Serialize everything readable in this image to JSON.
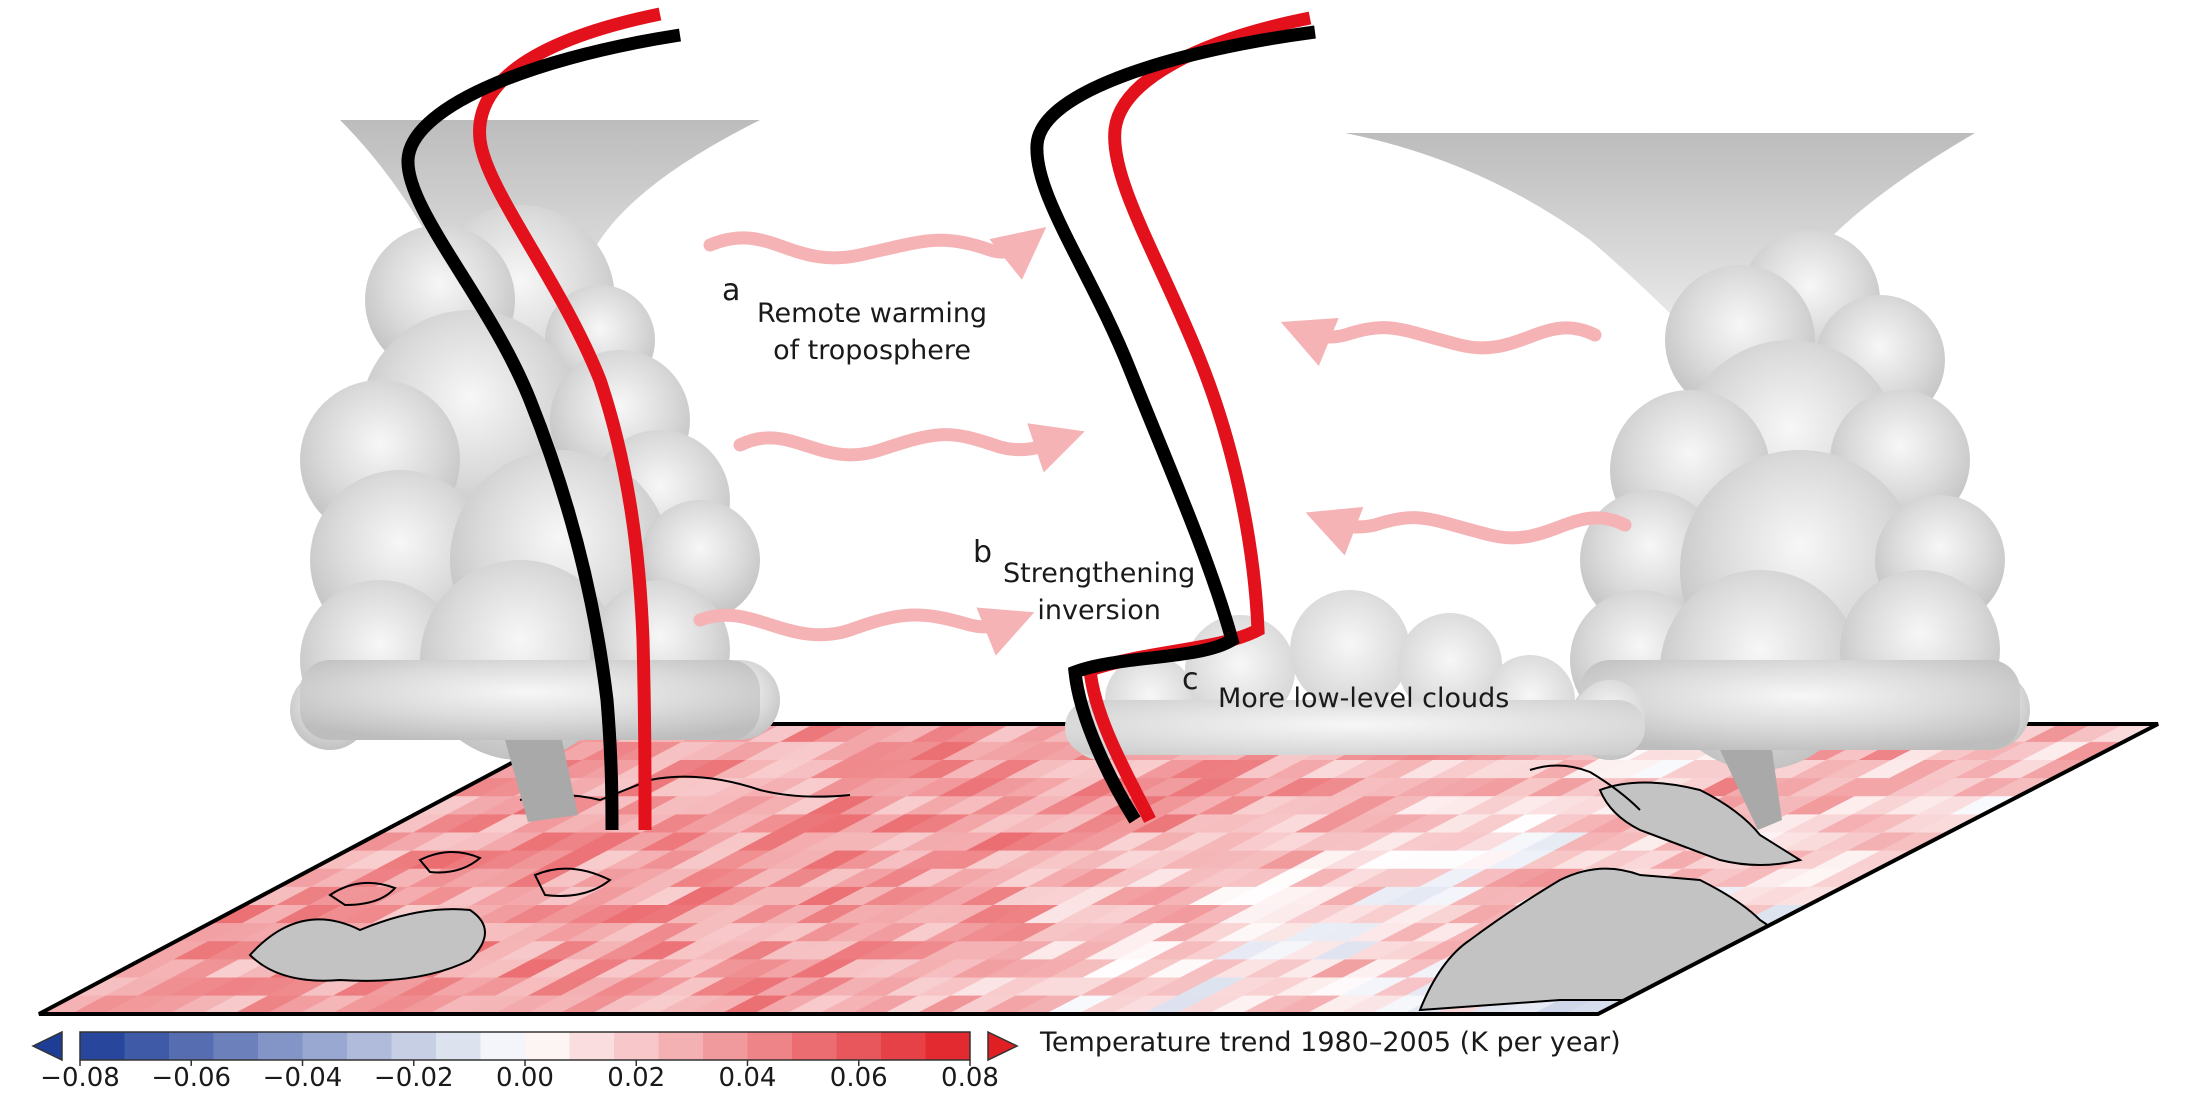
{
  "labels": {
    "a": {
      "letter": "a",
      "line1": "Remote warming",
      "line2": "of troposphere"
    },
    "b": {
      "letter": "b",
      "line1": "Strengthening",
      "line2": "inversion"
    },
    "c": {
      "letter": "c",
      "line1": "More low-level clouds"
    }
  },
  "colorbar": {
    "title": "Temperature trend 1980–2005 (K per year)",
    "ticks": [
      "−0.08",
      "−0.06",
      "−0.04",
      "−0.02",
      "0.00",
      "0.02",
      "0.04",
      "0.06",
      "0.08"
    ],
    "min": -0.08,
    "max": 0.08,
    "bins": 20
  },
  "colors": {
    "profile_current": "#000000",
    "profile_warmed": "#e3111b",
    "arrow": "#f5b3b5",
    "cloud": "#cfcfcf",
    "land": "#c3c3c3",
    "cool_end": "#1d3d97",
    "warm_end": "#e01f25"
  }
}
